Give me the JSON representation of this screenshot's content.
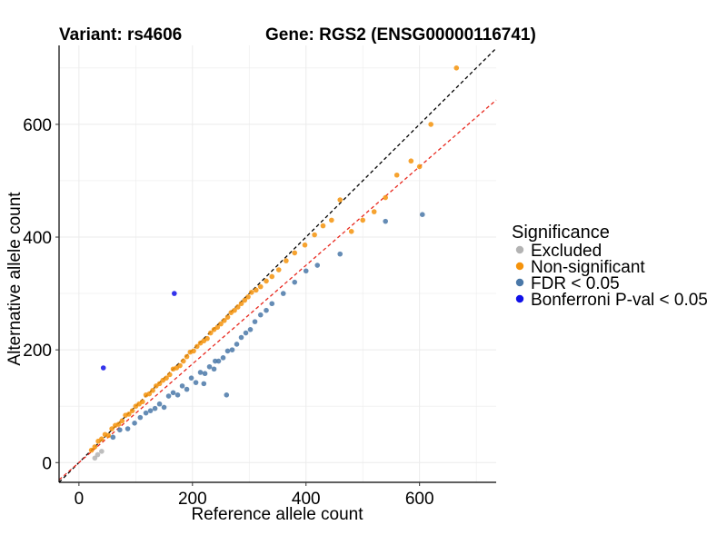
{
  "chart_data": {
    "type": "scatter",
    "title_variant": "Variant: rs4606",
    "title_gene": "Gene: RGS2 (ENSG00000116741)",
    "xlabel": "Reference allele count",
    "ylabel": "Alternative allele count",
    "xlim": [
      -35,
      735
    ],
    "ylim": [
      -35,
      740
    ],
    "x_ticks": [
      0,
      200,
      400,
      600
    ],
    "y_ticks": [
      0,
      200,
      400,
      600
    ],
    "grid": true,
    "legend": {
      "title": "Significance",
      "position": "right",
      "entries": [
        {
          "label": "Excluded",
          "color": "#b3b3b3"
        },
        {
          "label": "Non-significant",
          "color": "#f5930c"
        },
        {
          "label": "FDR < 0.05",
          "color": "#4a78a8"
        },
        {
          "label": "Bonferroni P-val < 0.05",
          "color": "#1010e8"
        }
      ]
    },
    "reference_lines": [
      {
        "name": "y = x",
        "slope": 1.0,
        "color": "#000000",
        "style": "dashed"
      },
      {
        "name": "fitted",
        "slope": 0.875,
        "color": "#e8281e",
        "style": "dashed"
      }
    ],
    "series": [
      {
        "name": "Excluded",
        "color": "#b3b3b3",
        "x": [
          28,
          33,
          40
        ],
        "y": [
          8,
          14,
          20
        ]
      },
      {
        "name": "Non-significant",
        "color": "#f5930c",
        "x": [
          22,
          28,
          34,
          40,
          46,
          52,
          58,
          64,
          70,
          76,
          82,
          88,
          94,
          100,
          106,
          112,
          118,
          124,
          130,
          136,
          142,
          148,
          154,
          160,
          166,
          172,
          178,
          184,
          190,
          196,
          202,
          208,
          214,
          220,
          226,
          232,
          238,
          244,
          250,
          256,
          262,
          268,
          274,
          280,
          286,
          292,
          298,
          304,
          312,
          320,
          330,
          340,
          352,
          365,
          380,
          398,
          415,
          430,
          445,
          460,
          480,
          500,
          520,
          540,
          560,
          585,
          600,
          620,
          665
        ],
        "y": [
          22,
          28,
          38,
          42,
          50,
          48,
          60,
          66,
          68,
          74,
          84,
          86,
          92,
          100,
          104,
          108,
          120,
          122,
          128,
          136,
          140,
          146,
          150,
          156,
          166,
          168,
          172,
          180,
          188,
          196,
          198,
          206,
          212,
          216,
          220,
          230,
          236,
          240,
          246,
          252,
          258,
          266,
          270,
          276,
          282,
          288,
          294,
          302,
          306,
          312,
          322,
          330,
          342,
          358,
          372,
          386,
          404,
          420,
          430,
          466,
          410,
          430,
          445,
          470,
          510,
          535,
          525,
          600,
          700
        ]
      },
      {
        "name": "FDR < 0.05",
        "color": "#4a78a8",
        "x": [
          60,
          72,
          86,
          98,
          108,
          118,
          126,
          134,
          142,
          150,
          158,
          166,
          174,
          182,
          190,
          198,
          206,
          214,
          222,
          230,
          238,
          246,
          254,
          262,
          270,
          278,
          286,
          294,
          302,
          310,
          320,
          330,
          340,
          360,
          380,
          400,
          420,
          460,
          540,
          605,
          220,
          240,
          260
        ],
        "y": [
          45,
          58,
          60,
          70,
          80,
          88,
          92,
          96,
          104,
          98,
          118,
          124,
          120,
          136,
          130,
          150,
          142,
          160,
          158,
          170,
          166,
          180,
          186,
          198,
          200,
          210,
          222,
          230,
          236,
          250,
          262,
          270,
          282,
          300,
          320,
          340,
          350,
          370,
          428,
          440,
          140,
          180,
          120
        ]
      },
      {
        "name": "Bonferroni P-val < 0.05",
        "color": "#1010e8",
        "x": [
          43,
          168
        ],
        "y": [
          168,
          300
        ]
      }
    ]
  }
}
